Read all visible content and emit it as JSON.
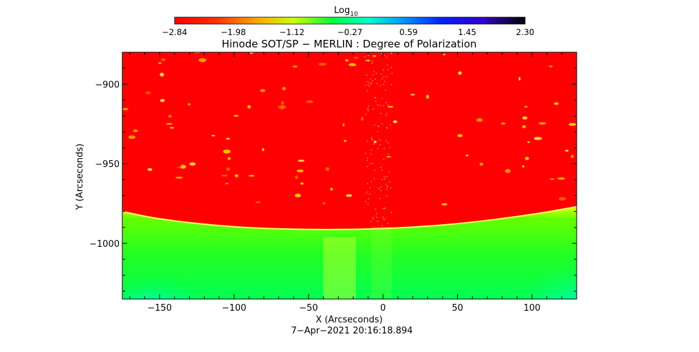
{
  "chart_data": {
    "type": "heatmap",
    "title": "Hinode SOT/SP − MERLIN : Degree of Polarization",
    "xlabel": "X (Arcseconds)",
    "ylabel": "Y (Arcseconds)",
    "timestamp": "7−Apr−2021 20:16:18.894",
    "xlim": [
      -175,
      130
    ],
    "ylim": [
      -1035,
      -880
    ],
    "xticks": [
      -150,
      -100,
      -50,
      0,
      50,
      100
    ],
    "yticks": [
      -900,
      -950,
      -1000
    ],
    "xtick_labels": [
      "−150",
      "−100",
      "−50",
      "0",
      "50",
      "100"
    ],
    "ytick_labels": [
      "−900",
      "−950",
      "−1000"
    ],
    "colorbar": {
      "title_base": "Log",
      "title_sub": "10",
      "min": -2.84,
      "max": 2.3,
      "tick_values": [
        -2.84,
        -1.98,
        -1.12,
        -0.27,
        0.59,
        1.45,
        2.3
      ],
      "tick_labels": [
        "−2.84",
        "−1.98",
        "−1.12",
        "−0.27",
        "0.59",
        "1.45",
        "2.30"
      ]
    },
    "limb_boundary": {
      "x": [
        -175,
        -150,
        -100,
        -50,
        0,
        50,
        100,
        130
      ],
      "y": [
        -980,
        -985,
        -990,
        -991.5,
        -991,
        -988,
        -982,
        -977
      ]
    }
  }
}
